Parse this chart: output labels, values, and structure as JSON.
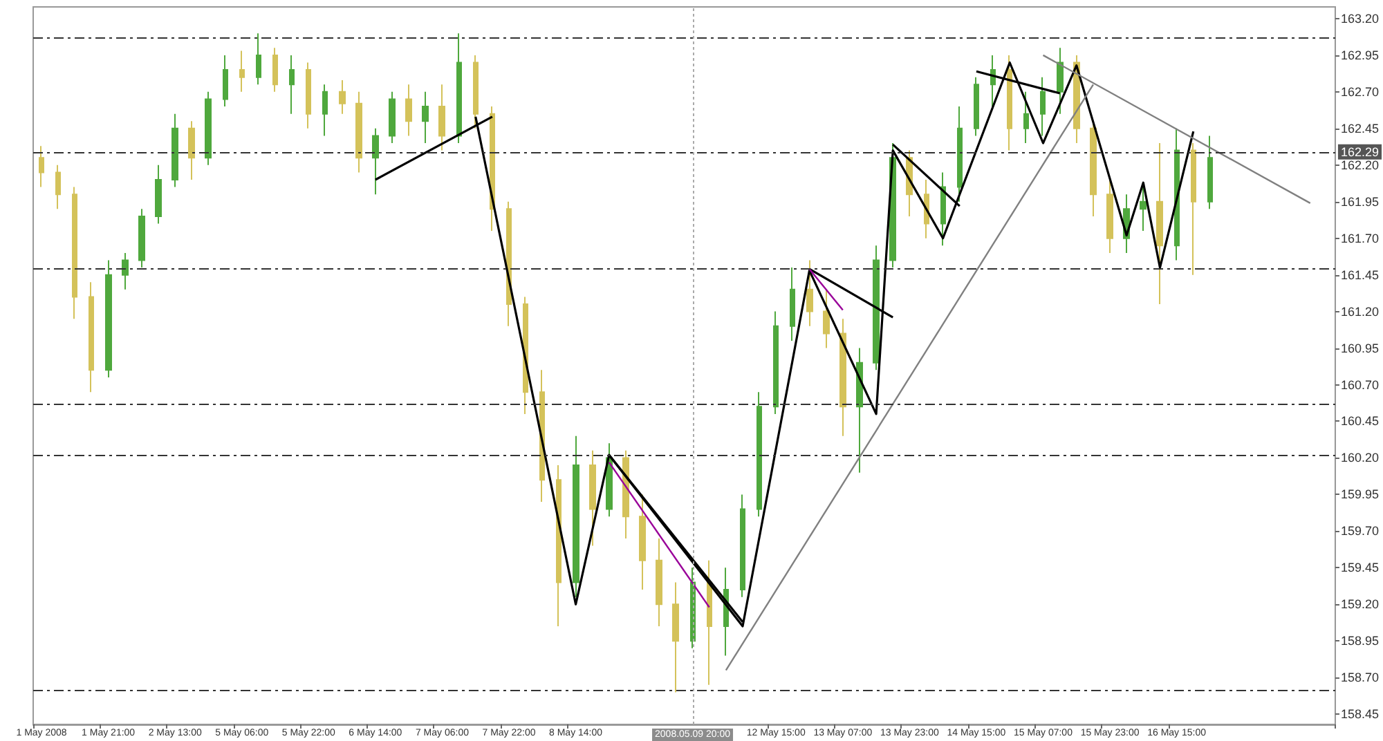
{
  "chart_data": {
    "type": "candlestick",
    "categories": [
      "1 May 2008",
      null,
      null,
      null,
      "1 May 21:00",
      null,
      null,
      null,
      "2 May 13:00",
      null,
      null,
      null,
      "5 May 06:00",
      null,
      null,
      null,
      "5 May 22:00",
      null,
      null,
      null,
      "6 May 14:00",
      null,
      null,
      null,
      "7 May 06:00",
      null,
      null,
      null,
      "7 May 22:00",
      null,
      null,
      null,
      "8 May 14:00",
      null,
      null,
      null,
      null,
      null,
      null,
      "2008.05.09 20:00",
      null,
      null,
      null,
      null,
      "12 May 15:00",
      null,
      null,
      null,
      "13 May 07:00",
      null,
      null,
      null,
      "13 May 23:00",
      null,
      null,
      null,
      "14 May 15:00",
      null,
      null,
      null,
      "15 May 07:00",
      null,
      null,
      null,
      "15 May 23:00",
      null,
      null,
      null,
      "16 May 15:00",
      null,
      null,
      null,
      null,
      null,
      null,
      null,
      null,
      null
    ],
    "series": [
      {
        "ohlc": [
          [
            162.25,
            162.33,
            162.05,
            162.15
          ],
          [
            162.15,
            162.2,
            161.9,
            162.0
          ],
          [
            162.0,
            162.05,
            161.15,
            161.3
          ],
          [
            161.3,
            161.4,
            160.65,
            160.8
          ],
          [
            160.8,
            161.55,
            160.75,
            161.45
          ],
          [
            161.45,
            161.6,
            161.35,
            161.55
          ],
          [
            161.55,
            161.9,
            161.5,
            161.85
          ],
          [
            161.85,
            162.2,
            161.8,
            162.1
          ],
          [
            162.1,
            162.55,
            162.05,
            162.45
          ],
          [
            162.45,
            162.5,
            162.1,
            162.25
          ],
          [
            162.25,
            162.7,
            162.2,
            162.65
          ],
          [
            162.65,
            162.95,
            162.6,
            162.85
          ],
          [
            162.85,
            162.98,
            162.7,
            162.8
          ],
          [
            162.8,
            163.1,
            162.75,
            162.95
          ],
          [
            162.95,
            163.0,
            162.7,
            162.75
          ],
          [
            162.75,
            162.95,
            162.55,
            162.85
          ],
          [
            162.85,
            162.9,
            162.45,
            162.55
          ],
          [
            162.55,
            162.75,
            162.4,
            162.7
          ],
          [
            162.7,
            162.78,
            162.55,
            162.62
          ],
          [
            162.62,
            162.7,
            162.15,
            162.25
          ],
          [
            162.25,
            162.45,
            162.0,
            162.4
          ],
          [
            162.4,
            162.7,
            162.35,
            162.65
          ],
          [
            162.65,
            162.75,
            162.4,
            162.5
          ],
          [
            162.5,
            162.7,
            162.35,
            162.6
          ],
          [
            162.6,
            162.75,
            162.3,
            162.4
          ],
          [
            162.4,
            163.1,
            162.35,
            162.9
          ],
          [
            162.9,
            162.95,
            162.45,
            162.55
          ],
          [
            162.55,
            162.6,
            161.75,
            161.9
          ],
          [
            161.9,
            161.95,
            161.1,
            161.25
          ],
          [
            161.25,
            161.3,
            160.5,
            160.65
          ],
          [
            160.65,
            160.8,
            159.9,
            160.05
          ],
          [
            160.05,
            160.15,
            159.05,
            159.35
          ],
          [
            159.35,
            160.35,
            159.25,
            160.15
          ],
          [
            160.15,
            160.25,
            159.6,
            159.85
          ],
          [
            159.85,
            160.3,
            159.8,
            160.2
          ],
          [
            160.2,
            160.25,
            159.65,
            159.8
          ],
          [
            159.8,
            159.95,
            159.3,
            159.5
          ],
          [
            159.5,
            159.65,
            159.05,
            159.2
          ],
          [
            159.2,
            159.35,
            158.6,
            158.95
          ],
          [
            158.95,
            159.45,
            158.9,
            159.35
          ],
          [
            159.35,
            159.5,
            158.65,
            159.05
          ],
          [
            159.05,
            159.45,
            158.85,
            159.3
          ],
          [
            159.3,
            159.95,
            159.25,
            159.85
          ],
          [
            159.85,
            160.65,
            159.8,
            160.55
          ],
          [
            160.55,
            161.2,
            160.5,
            161.1
          ],
          [
            161.1,
            161.5,
            161.0,
            161.35
          ],
          [
            161.35,
            161.55,
            161.1,
            161.2
          ],
          [
            161.2,
            161.35,
            160.95,
            161.05
          ],
          [
            161.05,
            161.15,
            160.35,
            160.55
          ],
          [
            160.55,
            160.95,
            160.1,
            160.85
          ],
          [
            160.85,
            161.65,
            160.8,
            161.55
          ],
          [
            161.55,
            162.35,
            161.5,
            162.25
          ],
          [
            162.25,
            162.3,
            161.85,
            162.0
          ],
          [
            162.0,
            162.1,
            161.7,
            161.8
          ],
          [
            161.8,
            162.15,
            161.65,
            162.05
          ],
          [
            162.05,
            162.6,
            161.95,
            162.45
          ],
          [
            162.45,
            162.8,
            162.4,
            162.75
          ],
          [
            162.75,
            162.95,
            162.6,
            162.85
          ],
          [
            162.85,
            162.95,
            162.3,
            162.45
          ],
          [
            162.45,
            162.7,
            162.35,
            162.55
          ],
          [
            162.55,
            162.8,
            162.4,
            162.7
          ],
          [
            162.7,
            163.0,
            162.55,
            162.9
          ],
          [
            162.9,
            162.95,
            162.35,
            162.45
          ],
          [
            162.45,
            162.5,
            161.85,
            162.0
          ],
          [
            162.0,
            162.1,
            161.6,
            161.7
          ],
          [
            161.7,
            162.0,
            161.6,
            161.9
          ],
          [
            161.9,
            162.05,
            161.75,
            161.95
          ],
          [
            161.95,
            162.35,
            161.25,
            161.65
          ],
          [
            161.65,
            162.45,
            161.55,
            162.3
          ],
          [
            162.3,
            162.35,
            161.45,
            161.95
          ],
          [
            161.95,
            162.4,
            161.9,
            162.25
          ],
          null,
          null,
          null,
          null,
          null,
          null,
          null
        ],
        "colors": [
          "#d4c25a",
          "#d4c25a",
          "#d4c25a",
          "#d4c25a",
          "#4fa83d",
          "#4fa83d",
          "#4fa83d",
          "#4fa83d",
          "#4fa83d",
          "#d4c25a",
          "#4fa83d",
          "#4fa83d",
          "#d4c25a",
          "#4fa83d",
          "#d4c25a",
          "#4fa83d",
          "#d4c25a",
          "#4fa83d",
          "#d4c25a",
          "#d4c25a",
          "#4fa83d",
          "#4fa83d",
          "#d4c25a",
          "#4fa83d",
          "#d4c25a",
          "#4fa83d",
          "#d4c25a",
          "#d4c25a",
          "#d4c25a",
          "#d4c25a",
          "#d4c25a",
          "#d4c25a",
          "#4fa83d",
          "#d4c25a",
          "#4fa83d",
          "#d4c25a",
          "#d4c25a",
          "#d4c25a",
          "#d4c25a",
          "#4fa83d",
          "#d4c25a",
          "#4fa83d",
          "#4fa83d",
          "#4fa83d",
          "#4fa83d",
          "#4fa83d",
          "#d4c25a",
          "#d4c25a",
          "#d4c25a",
          "#4fa83d",
          "#4fa83d",
          "#4fa83d",
          "#d4c25a",
          "#d4c25a",
          "#4fa83d",
          "#4fa83d",
          "#4fa83d",
          "#4fa83d",
          "#d4c25a",
          "#4fa83d",
          "#4fa83d",
          "#4fa83d",
          "#d4c25a",
          "#d4c25a",
          "#d4c25a",
          "#4fa83d",
          "#4fa83d",
          "#d4c25a",
          "#4fa83d",
          "#d4c25a",
          "#4fa83d",
          null,
          null,
          null,
          null,
          null,
          null,
          null
        ]
      },
      {
        "type": "line",
        "color": "#000000",
        "values": [
          null,
          null,
          null,
          null,
          null,
          null,
          null,
          null,
          null,
          null,
          null,
          null,
          null,
          null,
          null,
          null,
          null,
          null,
          null,
          null,
          null,
          null,
          null,
          null,
          null,
          null,
          162.53,
          null,
          null,
          null,
          null,
          null,
          159.2,
          null,
          160.22,
          null,
          null,
          null,
          null,
          null,
          null,
          null,
          159.05,
          null,
          null,
          null,
          161.48,
          null,
          null,
          null,
          160.5,
          162.3,
          null,
          null,
          161.7,
          null,
          null,
          null,
          162.9,
          null,
          162.35,
          null,
          162.88,
          null,
          null,
          161.72,
          162.08,
          161.5,
          null,
          162.43,
          null,
          null,
          null,
          null,
          null,
          null,
          null,
          null
        ]
      },
      {
        "type": "line",
        "color": "#000000",
        "values": [
          null,
          null,
          null,
          null,
          null,
          null,
          null,
          null,
          null,
          null,
          null,
          null,
          null,
          null,
          null,
          null,
          null,
          null,
          null,
          null,
          162.1,
          null,
          null,
          null,
          null,
          null,
          null,
          162.53,
          null,
          null,
          null,
          null,
          null,
          null,
          null,
          null,
          null,
          null,
          null,
          null,
          null,
          null,
          null,
          null,
          null,
          null,
          null,
          null,
          null,
          null,
          null,
          null,
          null,
          null,
          null,
          null,
          null,
          null,
          null,
          null,
          null,
          null,
          null,
          null,
          null,
          null,
          null,
          null,
          null,
          null,
          null,
          null,
          null,
          null,
          null,
          null,
          null,
          null
        ]
      },
      {
        "type": "line",
        "color": "#000000",
        "values": [
          null,
          null,
          null,
          null,
          null,
          null,
          null,
          null,
          null,
          null,
          null,
          null,
          null,
          null,
          null,
          null,
          null,
          null,
          null,
          null,
          null,
          null,
          null,
          null,
          null,
          null,
          null,
          null,
          null,
          null,
          null,
          null,
          null,
          null,
          160.22,
          null,
          null,
          null,
          null,
          null,
          null,
          null,
          159.08,
          null,
          null,
          null,
          null,
          null,
          null,
          null,
          null,
          null,
          null,
          null,
          null,
          null,
          null,
          null,
          null,
          null,
          null,
          null,
          null,
          null,
          null,
          null,
          null,
          null,
          null,
          null,
          null,
          null,
          null,
          null,
          null,
          null,
          null,
          null
        ]
      },
      {
        "type": "line",
        "color": "#000000",
        "values": [
          null,
          null,
          null,
          null,
          null,
          null,
          null,
          null,
          null,
          null,
          null,
          null,
          null,
          null,
          null,
          null,
          null,
          null,
          null,
          null,
          null,
          null,
          null,
          null,
          null,
          null,
          null,
          null,
          null,
          null,
          null,
          null,
          null,
          null,
          null,
          null,
          null,
          null,
          null,
          null,
          null,
          null,
          null,
          null,
          null,
          null,
          161.49,
          null,
          null,
          null,
          null,
          161.16,
          null,
          null,
          null,
          null,
          null,
          null,
          null,
          null,
          null,
          null,
          null,
          null,
          null,
          null,
          null,
          null,
          null,
          null,
          null,
          null,
          null,
          null,
          null,
          null,
          null,
          null
        ]
      },
      {
        "type": "line",
        "color": "#000000",
        "values": [
          null,
          null,
          null,
          null,
          null,
          null,
          null,
          null,
          null,
          null,
          null,
          null,
          null,
          null,
          null,
          null,
          null,
          null,
          null,
          null,
          null,
          null,
          null,
          null,
          null,
          null,
          null,
          null,
          null,
          null,
          null,
          null,
          null,
          null,
          null,
          null,
          null,
          null,
          null,
          null,
          null,
          null,
          null,
          null,
          null,
          null,
          null,
          null,
          null,
          null,
          null,
          162.34,
          null,
          null,
          null,
          161.92,
          null,
          null,
          null,
          null,
          null,
          null,
          null,
          null,
          null,
          null,
          null,
          null,
          null,
          null,
          null,
          null,
          null,
          null,
          null,
          null,
          null,
          null
        ]
      },
      {
        "type": "line",
        "color": "#000000",
        "values": [
          null,
          null,
          null,
          null,
          null,
          null,
          null,
          null,
          null,
          null,
          null,
          null,
          null,
          null,
          null,
          null,
          null,
          null,
          null,
          null,
          null,
          null,
          null,
          null,
          null,
          null,
          null,
          null,
          null,
          null,
          null,
          null,
          null,
          null,
          null,
          null,
          null,
          null,
          null,
          null,
          null,
          null,
          null,
          null,
          null,
          null,
          null,
          null,
          null,
          null,
          null,
          null,
          null,
          null,
          null,
          null,
          162.84,
          null,
          null,
          null,
          null,
          162.69,
          null,
          null,
          null,
          null,
          null,
          null,
          null,
          null,
          null,
          null,
          null,
          null,
          null,
          null,
          null,
          null
        ]
      },
      {
        "type": "line",
        "color": "#808080",
        "values": [
          null,
          null,
          null,
          null,
          null,
          null,
          null,
          null,
          null,
          null,
          null,
          null,
          null,
          null,
          null,
          null,
          null,
          null,
          null,
          null,
          null,
          null,
          null,
          null,
          null,
          null,
          null,
          null,
          null,
          null,
          null,
          null,
          null,
          null,
          null,
          null,
          null,
          null,
          null,
          null,
          null,
          158.75,
          null,
          null,
          null,
          null,
          null,
          null,
          null,
          null,
          null,
          null,
          null,
          null,
          null,
          null,
          null,
          null,
          null,
          null,
          null,
          null,
          null,
          162.75,
          null,
          null,
          null,
          null,
          null,
          null,
          null,
          null,
          null,
          null,
          null,
          null,
          null,
          null
        ]
      },
      {
        "type": "line",
        "color": "#808080",
        "values": [
          null,
          null,
          null,
          null,
          null,
          null,
          null,
          null,
          null,
          null,
          null,
          null,
          null,
          null,
          null,
          null,
          null,
          null,
          null,
          null,
          null,
          null,
          null,
          null,
          null,
          null,
          null,
          null,
          null,
          null,
          null,
          null,
          null,
          null,
          null,
          null,
          null,
          null,
          null,
          null,
          null,
          null,
          null,
          null,
          null,
          null,
          null,
          null,
          null,
          null,
          null,
          null,
          null,
          null,
          null,
          null,
          null,
          null,
          null,
          null,
          162.95,
          null,
          null,
          null,
          null,
          null,
          null,
          null,
          null,
          null,
          null,
          null,
          null,
          null,
          null,
          null,
          161.94,
          null
        ]
      },
      {
        "type": "line",
        "color": "#990099",
        "values": [
          null,
          null,
          null,
          null,
          null,
          null,
          null,
          null,
          null,
          null,
          null,
          null,
          null,
          null,
          null,
          null,
          null,
          null,
          null,
          null,
          null,
          null,
          null,
          null,
          null,
          null,
          null,
          null,
          null,
          null,
          null,
          null,
          null,
          null,
          160.17,
          null,
          null,
          null,
          null,
          null,
          159.18,
          null,
          null,
          null,
          null,
          null,
          null,
          null,
          null,
          null,
          null,
          null,
          null,
          null,
          null,
          null,
          null,
          null,
          null,
          null,
          null,
          null,
          null,
          null,
          null,
          null,
          null,
          null,
          null,
          null,
          null,
          null,
          null,
          null,
          null,
          null,
          null,
          null
        ]
      },
      {
        "type": "line",
        "color": "#990099",
        "values": [
          null,
          null,
          null,
          null,
          null,
          null,
          null,
          null,
          null,
          null,
          null,
          null,
          null,
          null,
          null,
          null,
          null,
          null,
          null,
          null,
          null,
          null,
          null,
          null,
          null,
          null,
          null,
          null,
          null,
          null,
          null,
          null,
          null,
          null,
          null,
          null,
          null,
          null,
          null,
          null,
          null,
          null,
          null,
          null,
          null,
          null,
          161.49,
          null,
          161.21,
          null,
          null,
          null,
          null,
          null,
          null,
          null,
          null,
          null,
          null,
          null,
          null,
          null,
          null,
          null,
          null,
          null,
          null,
          null,
          null,
          null,
          null,
          null,
          null,
          null,
          null,
          null,
          null,
          null
        ]
      }
    ],
    "ylim": [
      158.38,
      163.28
    ],
    "yticks": [
      {
        "value": 158.45,
        "label": "158.45"
      },
      {
        "value": 158.7,
        "label": "158.70"
      },
      {
        "value": 158.95,
        "label": "158.95"
      },
      {
        "value": 159.2,
        "label": "159.20"
      },
      {
        "value": 159.45,
        "label": "159.45"
      },
      {
        "value": 159.7,
        "label": "159.70"
      },
      {
        "value": 159.95,
        "label": "159.95"
      },
      {
        "value": 160.2,
        "label": "160.20"
      },
      {
        "value": 160.45,
        "label": "160.45"
      },
      {
        "value": 160.7,
        "label": "160.70"
      },
      {
        "value": 160.95,
        "label": "160.95"
      },
      {
        "value": 161.2,
        "label": "161.20"
      },
      {
        "value": 161.45,
        "label": "161.45"
      },
      {
        "value": 161.7,
        "label": "161.70"
      },
      {
        "value": 161.95,
        "label": "161.95"
      },
      {
        "value": 162.2,
        "label": "162.20"
      },
      {
        "value": 162.45,
        "label": "162.45"
      },
      {
        "value": 162.7,
        "label": "162.70"
      },
      {
        "value": 162.95,
        "label": "162.95"
      },
      {
        "value": 163.2,
        "label": "163.20"
      }
    ],
    "ref_lines": [
      {
        "axis": "y",
        "value": 163.07,
        "color": "#333333",
        "line_style": "dashed"
      },
      {
        "axis": "y",
        "value": 162.29,
        "label": "162.29",
        "color": "#333333",
        "line_style": "dashed"
      },
      {
        "axis": "y",
        "value": 161.49,
        "color": "#333333",
        "line_style": "dashed"
      },
      {
        "axis": "y",
        "value": 160.57,
        "color": "#333333",
        "line_style": "dashed"
      },
      {
        "axis": "y",
        "value": 160.22,
        "color": "#333333",
        "line_style": "dashed"
      },
      {
        "axis": "y",
        "value": 158.61,
        "color": "#333333",
        "line_style": "dashed"
      },
      {
        "axis": "x",
        "value": "2008.05.09 20:00",
        "color": "#aaaaaa",
        "line_style": "dotted"
      }
    ],
    "grid": false,
    "marker": "none"
  }
}
